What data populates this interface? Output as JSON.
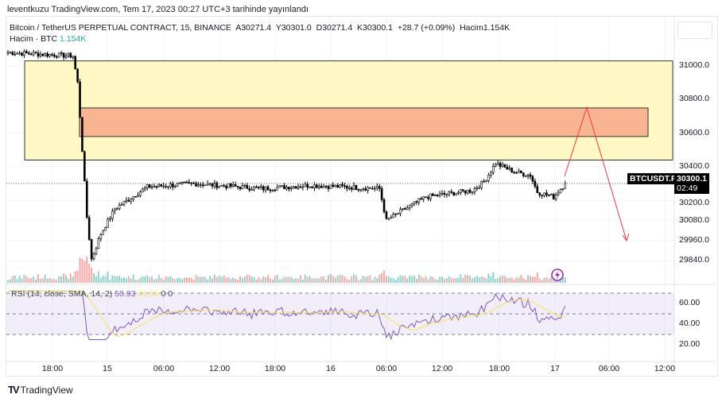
{
  "published": "leventkuzu TradingView.com, Tem 17, 2023 00:27 UTC+3 tarihinde yayınlandı",
  "legend": {
    "symbol": "Bitcoin / TetherUS PERPETUAL CONTRACT, 15, BINANCE",
    "open": "A30271.4",
    "high": "Y30301.0",
    "low": "D30271.4",
    "close": "K30300.1",
    "change": "+28.7 (+0.09%)",
    "volume": "Hacim1.154K",
    "vol_label": "Hacim · BTC",
    "vol_value": "1.154K"
  },
  "rsi_legend": {
    "label": "RSI (14, close, SMA, 14, 2)",
    "rsi": "50.93",
    "sma": "41.58",
    "extra": "0 0"
  },
  "price_axis": [
    "31000.0",
    "30800.0",
    "30600.0",
    "30400.0",
    "30200.0",
    "30080.0",
    "29960.0",
    "29840.0"
  ],
  "price_axis_values": [
    31000,
    30800,
    30600,
    30400,
    30200,
    30080,
    29960,
    29840
  ],
  "rsi_axis": [
    "60.00",
    "40.00",
    "20.00"
  ],
  "rsi_axis_values": [
    60,
    40,
    20
  ],
  "time_axis": [
    "18:00",
    "15",
    "06:00",
    "12:00",
    "18:00",
    "16",
    "06:00",
    "12:00",
    "18:00",
    "17",
    "06:00",
    "12:00"
  ],
  "symbol_tag": "BTCUSDT.P",
  "last_price": "30300.1",
  "countdown": "02:49",
  "brand": "TradingView",
  "colors": {
    "up": "#26a69a",
    "down": "#ef5350",
    "candle": "#000000",
    "zone_outer": "#fff8c4",
    "zone_inner": "#f9b592",
    "rsi": "#7e57c2",
    "rsi_sma": "#f7e05a",
    "arrow": "#f23645"
  },
  "zones": [
    {
      "top": 31030,
      "bottom": 30440
    },
    {
      "top": 30750,
      "bottom": 30580
    }
  ],
  "price_keypoints": [
    [
      0,
      31080
    ],
    [
      28,
      31060
    ],
    [
      30,
      30900
    ],
    [
      32,
      30500
    ],
    [
      34,
      30100
    ],
    [
      36,
      29850
    ],
    [
      40,
      30000
    ],
    [
      46,
      30150
    ],
    [
      60,
      30280
    ],
    [
      80,
      30300
    ],
    [
      110,
      30270
    ],
    [
      130,
      30290
    ],
    [
      160,
      30270
    ],
    [
      163,
      30080
    ],
    [
      170,
      30140
    ],
    [
      180,
      30220
    ],
    [
      200,
      30260
    ],
    [
      205,
      30310
    ],
    [
      210,
      30420
    ],
    [
      218,
      30370
    ],
    [
      225,
      30350
    ],
    [
      228,
      30250
    ],
    [
      235,
      30220
    ],
    [
      240,
      30300
    ]
  ],
  "projection": [
    [
      30250,
      "now+4"
    ],
    [
      30750,
      "now+14"
    ],
    [
      29970,
      "now+31"
    ]
  ]
}
